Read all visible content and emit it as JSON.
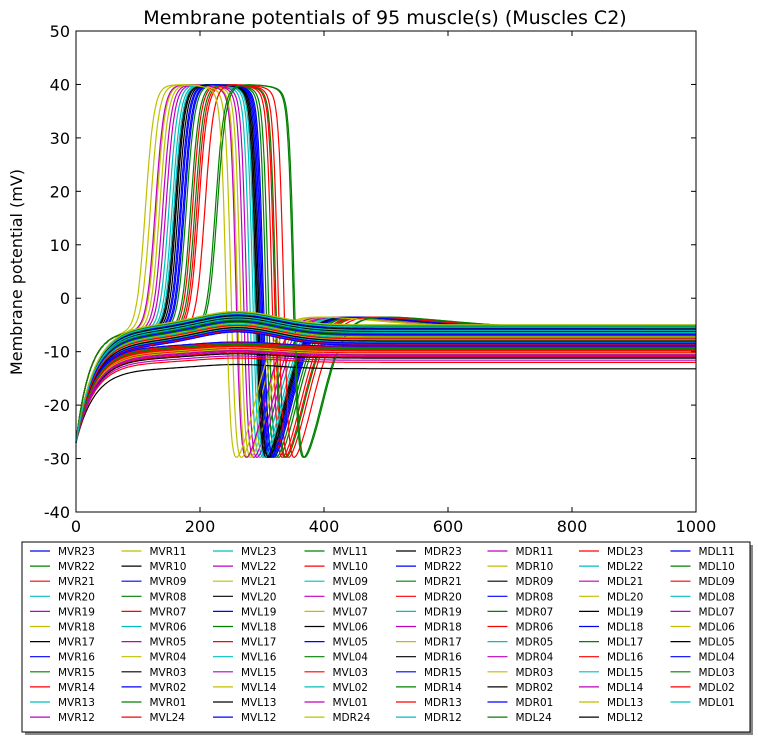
{
  "chart_data": {
    "type": "line",
    "title": "Membrane potentials of 95 muscle(s) (Muscles C2)",
    "xlabel": "",
    "ylabel": "Membrane potential (mV)",
    "xlim": [
      0,
      1000
    ],
    "ylim": [
      -40,
      50
    ],
    "xticks": [
      0,
      200,
      400,
      600,
      800,
      1000
    ],
    "yticks": [
      -40,
      -30,
      -20,
      -10,
      0,
      10,
      20,
      30,
      40,
      50
    ],
    "grid": false,
    "legend_position": "bottom",
    "color_cycle": [
      "#0000ff",
      "#008000",
      "#ff0000",
      "#00bfbf",
      "#bf00bf",
      "#bfbf00",
      "#000000"
    ],
    "series": [
      {
        "name": "MVR23",
        "kind": "spike",
        "t_up": 175,
        "t_down": 300
      },
      {
        "name": "MVR22",
        "kind": "spike",
        "t_up": 185,
        "t_down": 310
      },
      {
        "name": "MVR21",
        "kind": "spike",
        "t_up": 195,
        "t_down": 320
      },
      {
        "name": "MVR20",
        "kind": "spike",
        "t_up": 150,
        "t_down": 280
      },
      {
        "name": "MVR19",
        "kind": "spike",
        "t_up": 140,
        "t_down": 270
      },
      {
        "name": "MVR18",
        "kind": "spike",
        "t_up": 130,
        "t_down": 260
      },
      {
        "name": "MVR17",
        "kind": "spike",
        "t_up": 162,
        "t_down": 292
      },
      {
        "name": "MVR16",
        "kind": "spike",
        "t_up": 168,
        "t_down": 296
      },
      {
        "name": "MVR15",
        "kind": "spike",
        "t_up": 178,
        "t_down": 306
      },
      {
        "name": "MVR14",
        "kind": "spike",
        "t_up": 188,
        "t_down": 316
      },
      {
        "name": "MVR13",
        "kind": "spike",
        "t_up": 155,
        "t_down": 285
      },
      {
        "name": "MVR12",
        "kind": "spike",
        "t_up": 145,
        "t_down": 275
      },
      {
        "name": "MVR11",
        "kind": "spike",
        "t_up": 135,
        "t_down": 265
      },
      {
        "name": "MVR10",
        "kind": "spike",
        "t_up": 160,
        "t_down": 290
      },
      {
        "name": "MVR09",
        "kind": "spike",
        "t_up": 170,
        "t_down": 298
      },
      {
        "name": "MVR08",
        "kind": "spike",
        "t_up": 192,
        "t_down": 322
      },
      {
        "name": "MVR07",
        "kind": "spike",
        "t_up": 198,
        "t_down": 326
      },
      {
        "name": "MVR06",
        "kind": "spike",
        "t_up": 158,
        "t_down": 288
      },
      {
        "name": "MVR05",
        "kind": "spike",
        "t_up": 128,
        "t_down": 258
      },
      {
        "name": "MVR04",
        "kind": "spike",
        "t_up": 120,
        "t_down": 250
      },
      {
        "name": "MVR03",
        "kind": "spike",
        "t_up": 165,
        "t_down": 294
      },
      {
        "name": "MVR02",
        "kind": "spike",
        "t_up": 173,
        "t_down": 302
      },
      {
        "name": "MVR01",
        "kind": "spike",
        "t_up": 225,
        "t_down": 350
      },
      {
        "name": "MVL24",
        "kind": "spike",
        "t_up": 208,
        "t_down": 335
      },
      {
        "name": "MVL23",
        "kind": "flat",
        "v_final": -7.5
      },
      {
        "name": "MVL22",
        "kind": "flat",
        "v_final": -8.0
      },
      {
        "name": "MVL21",
        "kind": "flat",
        "v_final": -9.0
      },
      {
        "name": "MVL20",
        "kind": "flat",
        "v_final": -10.5
      },
      {
        "name": "MVL19",
        "kind": "flat",
        "v_final": -6.0
      },
      {
        "name": "MVL18",
        "kind": "flat",
        "v_final": -8.5
      },
      {
        "name": "MVL17",
        "kind": "flat",
        "v_final": -11.0
      },
      {
        "name": "MVL16",
        "kind": "flat",
        "v_final": -5.0
      },
      {
        "name": "MVL15",
        "kind": "flat",
        "v_final": -7.0
      },
      {
        "name": "MVL14",
        "kind": "flat",
        "v_final": -9.5
      },
      {
        "name": "MVL13",
        "kind": "flat",
        "v_final": -13.2
      },
      {
        "name": "MVL12",
        "kind": "flat",
        "v_final": -6.5
      },
      {
        "name": "MVL11",
        "kind": "flat",
        "v_final": -8.2
      },
      {
        "name": "MVL10",
        "kind": "flat",
        "v_final": -10.0
      },
      {
        "name": "MVL09",
        "kind": "flat",
        "v_final": -5.5
      },
      {
        "name": "MVL08",
        "kind": "flat",
        "v_final": -7.8
      },
      {
        "name": "MVL07",
        "kind": "flat",
        "v_final": -9.2
      },
      {
        "name": "MVL06",
        "kind": "flat",
        "v_final": -6.2
      },
      {
        "name": "MVL05",
        "kind": "flat",
        "v_final": -8.8
      },
      {
        "name": "MVL04",
        "kind": "flat",
        "v_final": -7.2
      },
      {
        "name": "MVL03",
        "kind": "flat",
        "v_final": -10.2
      },
      {
        "name": "MVL02",
        "kind": "flat",
        "v_final": -5.8
      },
      {
        "name": "MVL01",
        "kind": "flat",
        "v_final": -9.8
      },
      {
        "name": "MDR24",
        "kind": "spike",
        "t_up": 112,
        "t_down": 242
      },
      {
        "name": "MDR23",
        "kind": "flat",
        "v_final": -6.8
      },
      {
        "name": "MDR22",
        "kind": "flat",
        "v_final": -8.6
      },
      {
        "name": "MDR21",
        "kind": "flat",
        "v_final": -7.6
      },
      {
        "name": "MDR20",
        "kind": "flat",
        "v_final": -12.0
      },
      {
        "name": "MDR19",
        "kind": "flat",
        "v_final": -6.4
      },
      {
        "name": "MDR18",
        "kind": "flat",
        "v_final": -9.0
      },
      {
        "name": "MDR17",
        "kind": "flat",
        "v_final": -10.4
      },
      {
        "name": "MDR16",
        "kind": "flat",
        "v_final": -7.4
      },
      {
        "name": "MDR15",
        "kind": "flat",
        "v_final": -8.4
      },
      {
        "name": "MDR14",
        "kind": "flat",
        "v_final": -5.2
      },
      {
        "name": "MDR13",
        "kind": "flat",
        "v_final": -9.6
      },
      {
        "name": "MDR12",
        "kind": "flat",
        "v_final": -6.6
      },
      {
        "name": "MDR11",
        "kind": "flat",
        "v_final": -8.0
      },
      {
        "name": "MDR10",
        "kind": "flat",
        "v_final": -7.0
      },
      {
        "name": "MDR09",
        "kind": "flat",
        "v_final": -11.2
      },
      {
        "name": "MDR08",
        "kind": "flat",
        "v_final": -5.6
      },
      {
        "name": "MDR07",
        "kind": "flat",
        "v_final": -9.4
      },
      {
        "name": "MDR06",
        "kind": "flat",
        "v_final": -6.0
      },
      {
        "name": "MDR05",
        "kind": "flat",
        "v_final": -8.2
      },
      {
        "name": "MDR04",
        "kind": "flat",
        "v_final": -10.8
      },
      {
        "name": "MDR03",
        "kind": "flat",
        "v_final": -7.2
      },
      {
        "name": "MDR02",
        "kind": "flat",
        "v_final": -6.8
      },
      {
        "name": "MDR01",
        "kind": "flat",
        "v_final": -9.0
      },
      {
        "name": "MDL24",
        "kind": "spike",
        "t_up": 228,
        "t_down": 352
      },
      {
        "name": "MDL23",
        "kind": "flat",
        "v_final": -8.6
      },
      {
        "name": "MDL22",
        "kind": "flat",
        "v_final": -5.4
      },
      {
        "name": "MDL21",
        "kind": "flat",
        "v_final": -7.6
      },
      {
        "name": "MDL20",
        "kind": "flat",
        "v_final": -10.0
      },
      {
        "name": "MDL19",
        "kind": "flat",
        "v_final": -6.2
      },
      {
        "name": "MDL18",
        "kind": "flat",
        "v_final": -8.8
      },
      {
        "name": "MDL17",
        "kind": "flat",
        "v_final": -7.0
      },
      {
        "name": "MDL16",
        "kind": "flat",
        "v_final": -9.8
      },
      {
        "name": "MDL15",
        "kind": "flat",
        "v_final": -6.4
      },
      {
        "name": "MDL14",
        "kind": "flat",
        "v_final": -11.6
      },
      {
        "name": "MDL13",
        "kind": "flat",
        "v_final": -7.8
      },
      {
        "name": "MDL12",
        "kind": "flat",
        "v_final": -5.8
      },
      {
        "name": "MDL11",
        "kind": "flat",
        "v_final": -8.4
      },
      {
        "name": "MDL10",
        "kind": "flat",
        "v_final": -6.6
      },
      {
        "name": "MDL09",
        "kind": "flat",
        "v_final": -9.2
      },
      {
        "name": "MDL08",
        "kind": "flat",
        "v_final": -7.4
      },
      {
        "name": "MDL07",
        "kind": "flat",
        "v_final": -10.6
      },
      {
        "name": "MDL06",
        "kind": "flat",
        "v_final": -5.0
      },
      {
        "name": "MDL05",
        "kind": "flat",
        "v_final": -8.0
      },
      {
        "name": "MDL04",
        "kind": "flat",
        "v_final": -6.8
      },
      {
        "name": "MDL03",
        "kind": "flat",
        "v_final": -9.4
      },
      {
        "name": "MDL02",
        "kind": "flat",
        "v_final": -7.6
      },
      {
        "name": "MDL01",
        "kind": "flat",
        "v_final": -6.0
      }
    ]
  }
}
